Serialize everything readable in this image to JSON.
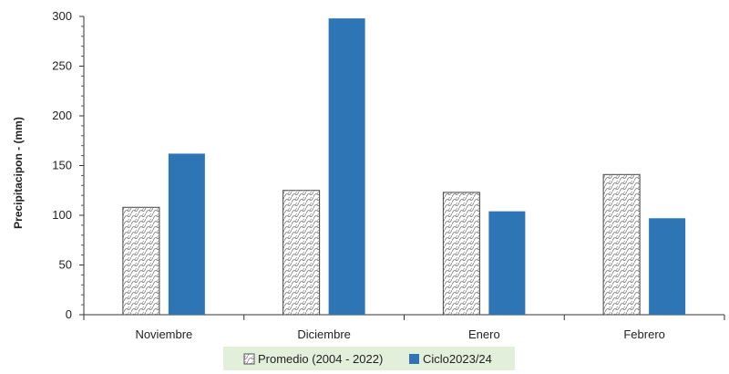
{
  "chart_data": {
    "type": "bar",
    "categories": [
      "Noviembre",
      "Diciembre",
      "Enero",
      "Febrero"
    ],
    "series": [
      {
        "name": "Promedio (2004 - 2022)",
        "values": [
          108,
          125,
          123,
          141
        ],
        "color": "#ffffff",
        "pattern": "scale"
      },
      {
        "name": "Ciclo2023/24",
        "values": [
          162,
          298,
          104,
          97
        ],
        "color": "#2e75b6"
      }
    ],
    "title": "",
    "xlabel": "",
    "ylabel": "Precipitacipon - (mm)",
    "ylim": [
      0,
      300
    ],
    "yticks": [
      0,
      50,
      100,
      150,
      200,
      250,
      300
    ],
    "grid": false,
    "legend_position": "bottom",
    "legend_background": "#e2efda"
  }
}
